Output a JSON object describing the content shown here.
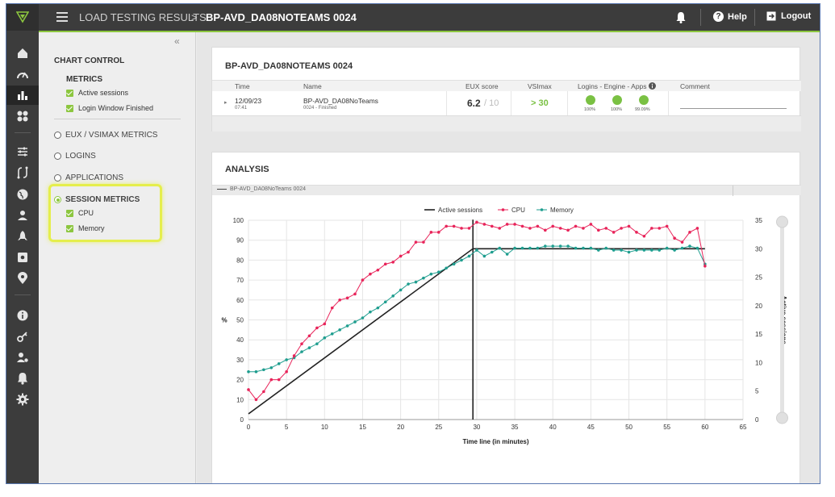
{
  "topbar": {
    "breadcrumb_root": "LOAD TESTING RESULTS",
    "breadcrumb_sep": ">",
    "breadcrumb_current": "BP-AVD_DA08NOTEAMS 0024",
    "help_label": "Help",
    "logout_label": "Logout"
  },
  "panel": {
    "collapse": "«",
    "title": "CHART CONTROL",
    "metrics_heading": "METRICS",
    "metrics": [
      "Active sessions",
      "Login Window Finished"
    ],
    "radios": [
      "EUX / VSIMAX METRICS",
      "LOGINS",
      "APPLICATIONS",
      "SESSION METRICS"
    ],
    "session_metrics": [
      "CPU",
      "Memory"
    ]
  },
  "summary": {
    "title": "BP-AVD_DA08NOTEAMS 0024",
    "columns": [
      "Time",
      "Name",
      "EUX score",
      "VSImax",
      "Logins - Engine - Apps",
      "Comment"
    ],
    "row": {
      "date": "12/09/23",
      "time": "07:41",
      "name": "BP-AVD_DA08NoTeams",
      "status": "0024 - Finished",
      "eux": "6.2",
      "eux_max": "/ 10",
      "vsimax": "> 30",
      "percents": [
        "100%",
        "100%",
        "99.09%"
      ]
    }
  },
  "analysis": {
    "title": "ANALYSIS",
    "tab": "BP-AVD_DA08NoTeams 0024"
  },
  "colors": {
    "accent": "#8cc63f",
    "cpu": "#e8245a",
    "memory": "#1f9e8f",
    "sessions": "#222222"
  },
  "chart_data": {
    "type": "line",
    "xlabel": "Time line (in minutes)",
    "ylabel": "%",
    "y2label": "Active sessions",
    "xlim": [
      0,
      65
    ],
    "ylim": [
      0,
      100
    ],
    "y2lim": [
      0,
      35
    ],
    "xticks": [
      0,
      5,
      10,
      15,
      20,
      25,
      30,
      35,
      40,
      45,
      50,
      55,
      60,
      65
    ],
    "yticks": [
      0,
      10,
      20,
      30,
      40,
      50,
      60,
      70,
      80,
      90,
      100
    ],
    "y2ticks": [
      0,
      5,
      10,
      15,
      20,
      25,
      30,
      35
    ],
    "legend_position": "top-center",
    "series": [
      {
        "name": "Active sessions",
        "axis": "right",
        "x": [
          0,
          29.5,
          29.5,
          60
        ],
        "y": [
          1,
          30,
          30,
          30
        ],
        "vline": {
          "x": 29.5,
          "from": 0,
          "to": 30
        }
      },
      {
        "name": "CPU",
        "axis": "left",
        "x": [
          0,
          1,
          2,
          3,
          4,
          5,
          6,
          7,
          8,
          9,
          10,
          11,
          12,
          13,
          14,
          15,
          16,
          17,
          18,
          19,
          20,
          21,
          22,
          23,
          24,
          25,
          26,
          27,
          28,
          29,
          30,
          31,
          32,
          33,
          34,
          35,
          36,
          37,
          38,
          39,
          40,
          41,
          42,
          43,
          44,
          45,
          46,
          47,
          48,
          49,
          50,
          51,
          52,
          53,
          54,
          55,
          56,
          57,
          58,
          59,
          60
        ],
        "y": [
          15,
          10,
          14,
          20,
          20,
          24,
          32,
          38,
          42,
          46,
          48,
          56,
          60,
          61,
          63,
          70,
          73,
          75,
          78,
          79,
          82,
          84,
          89,
          89,
          94,
          94,
          97,
          97,
          96,
          96,
          99,
          98,
          97,
          96,
          98,
          98,
          97,
          96,
          97,
          95,
          97,
          96,
          95,
          97,
          96,
          98,
          95,
          96,
          94,
          96,
          97,
          94,
          92,
          96,
          96,
          97,
          91,
          89,
          94,
          96,
          77
        ]
      },
      {
        "name": "Memory",
        "axis": "left",
        "x": [
          0,
          1,
          2,
          3,
          4,
          5,
          6,
          7,
          8,
          9,
          10,
          11,
          12,
          13,
          14,
          15,
          16,
          17,
          18,
          19,
          20,
          21,
          22,
          23,
          24,
          25,
          26,
          27,
          28,
          29,
          30,
          31,
          32,
          33,
          34,
          35,
          36,
          37,
          38,
          39,
          40,
          41,
          42,
          43,
          44,
          45,
          46,
          47,
          48,
          49,
          50,
          51,
          52,
          53,
          54,
          55,
          56,
          57,
          58,
          59,
          60
        ],
        "y": [
          24,
          24,
          25,
          26,
          28,
          30,
          31,
          34,
          36,
          38,
          41,
          43,
          45,
          47,
          49,
          51,
          54,
          56,
          59,
          62,
          65,
          68,
          69,
          71,
          73,
          74,
          76,
          78,
          80,
          82,
          85,
          82,
          84,
          86,
          83,
          86,
          86,
          86,
          86,
          87,
          87,
          87,
          87,
          86,
          86,
          86,
          85,
          86,
          85,
          85,
          84,
          85,
          85,
          85,
          85,
          86,
          85,
          86,
          87,
          86,
          78
        ]
      }
    ]
  }
}
